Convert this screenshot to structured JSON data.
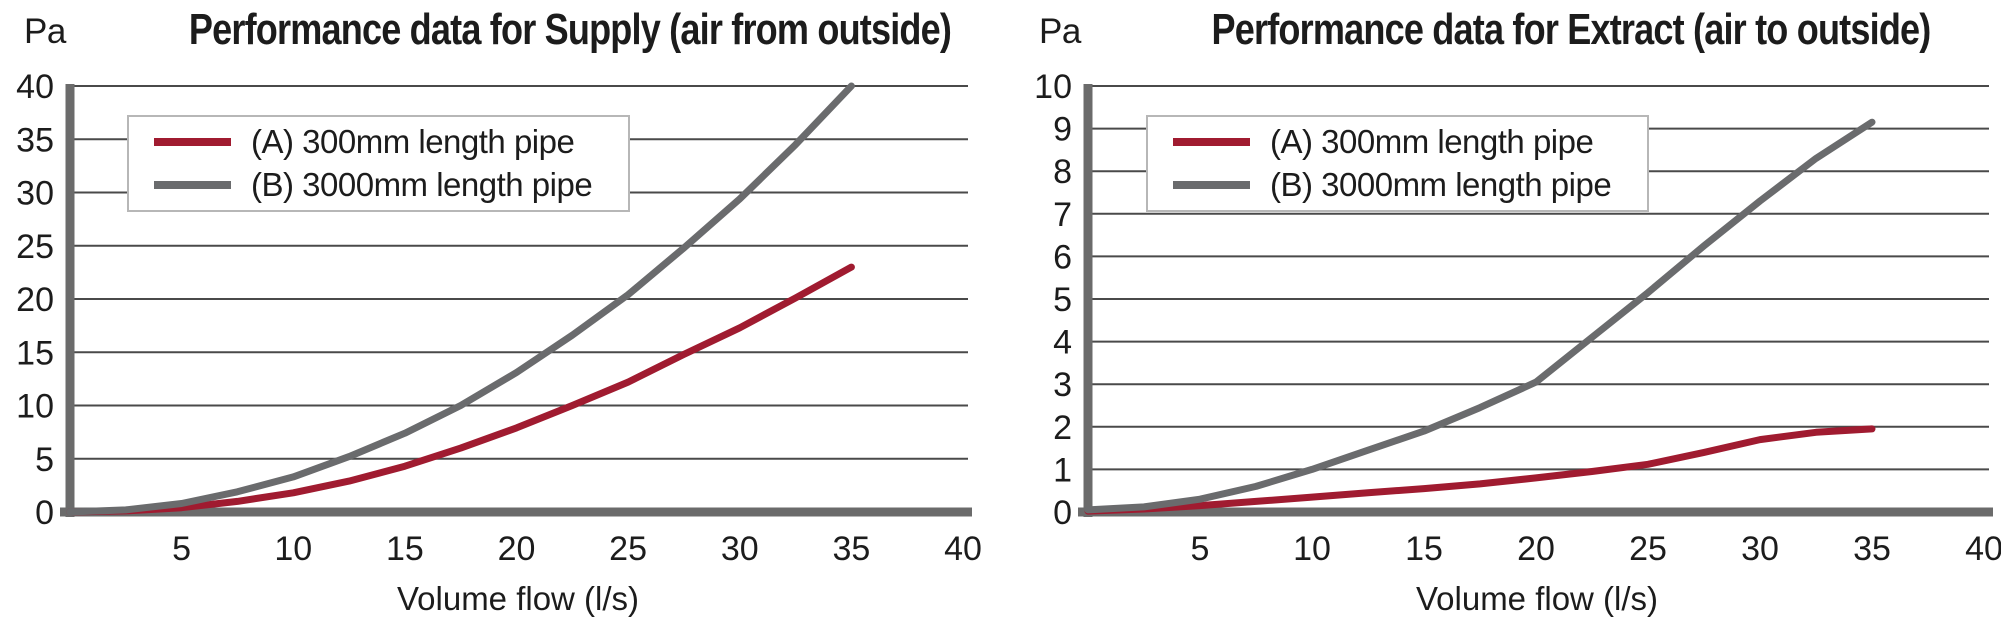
{
  "colors": {
    "series_a_red": "#A01B30",
    "series_b_gray": "#6A6B6D",
    "grid": "#4a4a4a",
    "axis": "#6b6b6b",
    "text": "#1c1c1c",
    "legend_border": "#b7b7b7",
    "background": "#ffffff"
  },
  "chart_data": [
    {
      "type": "line",
      "title": "Performance data for Supply (air from outside)",
      "y_unit_label": "Pa",
      "xlabel": "Volume flow (l/s)",
      "ylabel": "Pa",
      "xlim": [
        0,
        40
      ],
      "ylim": [
        0,
        40
      ],
      "x_ticks": [
        5,
        10,
        15,
        20,
        25,
        30,
        35,
        40
      ],
      "y_ticks": [
        0,
        5,
        10,
        15,
        20,
        25,
        30,
        35,
        40
      ],
      "grid": "horizontal",
      "legend_position": "top-left",
      "series": [
        {
          "name": "(A) 300mm length pipe",
          "color": "#A01B30",
          "points": [
            [
              0,
              0
            ],
            [
              2.5,
              0.1
            ],
            [
              5,
              0.4
            ],
            [
              7.5,
              1.0
            ],
            [
              10,
              1.8
            ],
            [
              12.5,
              2.9
            ],
            [
              15,
              4.3
            ],
            [
              17.5,
              6.0
            ],
            [
              20,
              7.9
            ],
            [
              22.5,
              10.0
            ],
            [
              25,
              12.2
            ],
            [
              27.5,
              14.8
            ],
            [
              30,
              17.3
            ],
            [
              32.5,
              20.1
            ],
            [
              35,
              23.0
            ]
          ]
        },
        {
          "name": "(B) 3000mm length pipe",
          "color": "#6A6B6D",
          "points": [
            [
              0,
              0
            ],
            [
              2.5,
              0.2
            ],
            [
              5,
              0.8
            ],
            [
              7.5,
              1.9
            ],
            [
              10,
              3.3
            ],
            [
              12.5,
              5.2
            ],
            [
              15,
              7.4
            ],
            [
              17.5,
              10.0
            ],
            [
              20,
              13.1
            ],
            [
              22.5,
              16.6
            ],
            [
              25,
              20.4
            ],
            [
              27.5,
              24.8
            ],
            [
              30,
              29.4
            ],
            [
              32.5,
              34.5
            ],
            [
              35,
              40.0
            ]
          ]
        }
      ]
    },
    {
      "type": "line",
      "title": "Performance data for Extract (air to outside)",
      "y_unit_label": "Pa",
      "xlabel": "Volume flow (l/s)",
      "ylabel": "Pa",
      "xlim": [
        0,
        40
      ],
      "ylim": [
        0,
        10
      ],
      "x_ticks": [
        5,
        10,
        15,
        20,
        25,
        30,
        35,
        40
      ],
      "y_ticks": [
        0,
        1,
        2,
        3,
        4,
        5,
        6,
        7,
        8,
        9,
        10
      ],
      "grid": "horizontal",
      "legend_position": "top-left",
      "series": [
        {
          "name": "(A) 300mm length pipe",
          "color": "#A01B30",
          "points": [
            [
              0,
              0.02
            ],
            [
              2.5,
              0.07
            ],
            [
              5,
              0.15
            ],
            [
              7.5,
              0.25
            ],
            [
              10,
              0.35
            ],
            [
              12.5,
              0.45
            ],
            [
              15,
              0.55
            ],
            [
              17.5,
              0.66
            ],
            [
              20,
              0.8
            ],
            [
              22.5,
              0.95
            ],
            [
              25,
              1.12
            ],
            [
              27.5,
              1.4
            ],
            [
              30,
              1.7
            ],
            [
              32.5,
              1.87
            ],
            [
              35,
              1.95
            ]
          ]
        },
        {
          "name": "(B) 3000mm length pipe",
          "color": "#6A6B6D",
          "points": [
            [
              0,
              0.05
            ],
            [
              2.5,
              0.12
            ],
            [
              5,
              0.3
            ],
            [
              7.5,
              0.6
            ],
            [
              10,
              1.0
            ],
            [
              12.5,
              1.45
            ],
            [
              15,
              1.9
            ],
            [
              17.5,
              2.45
            ],
            [
              20,
              3.05
            ],
            [
              22.5,
              4.1
            ],
            [
              25,
              5.15
            ],
            [
              27.5,
              6.25
            ],
            [
              30,
              7.3
            ],
            [
              32.5,
              8.3
            ],
            [
              35,
              9.15
            ]
          ]
        }
      ]
    }
  ]
}
